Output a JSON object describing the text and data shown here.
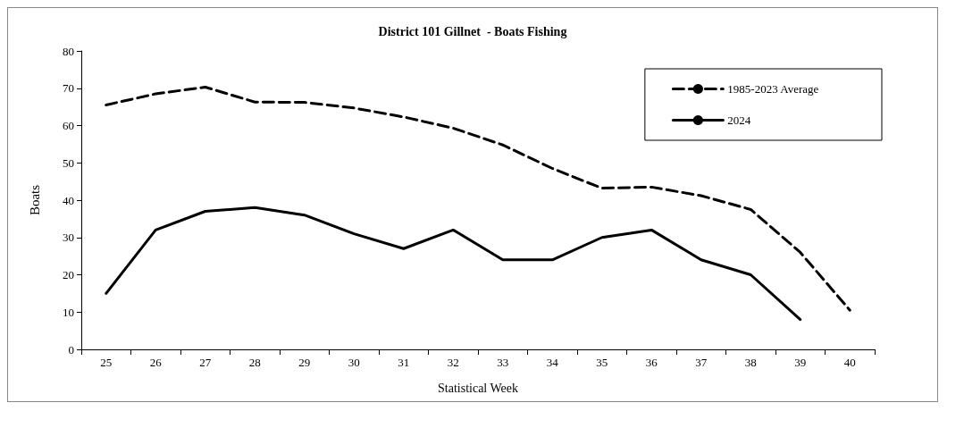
{
  "chart_data": {
    "type": "line",
    "title": "District 101 Gillnet  - Boats Fishing",
    "xlabel": "Statistical Week",
    "ylabel": "Boats",
    "categories": [
      "25",
      "26",
      "27",
      "28",
      "29",
      "30",
      "31",
      "32",
      "33",
      "34",
      "35",
      "36",
      "37",
      "38",
      "39",
      "40"
    ],
    "series": [
      {
        "name": "1985-2023 Average",
        "color": "#000000",
        "line_style": "dashed",
        "values": [
          65.5,
          68.5,
          70.3,
          66.3,
          66.2,
          64.7,
          62.3,
          59.3,
          54.8,
          48.5,
          43.2,
          43.5,
          41.2,
          37.5,
          26,
          10.5
        ]
      },
      {
        "name": "2024",
        "color": "#000000",
        "line_style": "solid",
        "values": [
          15,
          32,
          37,
          38,
          36,
          31,
          27,
          32,
          24,
          24,
          30,
          32,
          24,
          20,
          8,
          null
        ]
      }
    ],
    "ylim": [
      0,
      80
    ],
    "yticks": [
      0,
      10,
      20,
      30,
      40,
      50,
      60,
      70,
      80
    ],
    "grid": false,
    "legend": "top right",
    "marker": "none"
  }
}
